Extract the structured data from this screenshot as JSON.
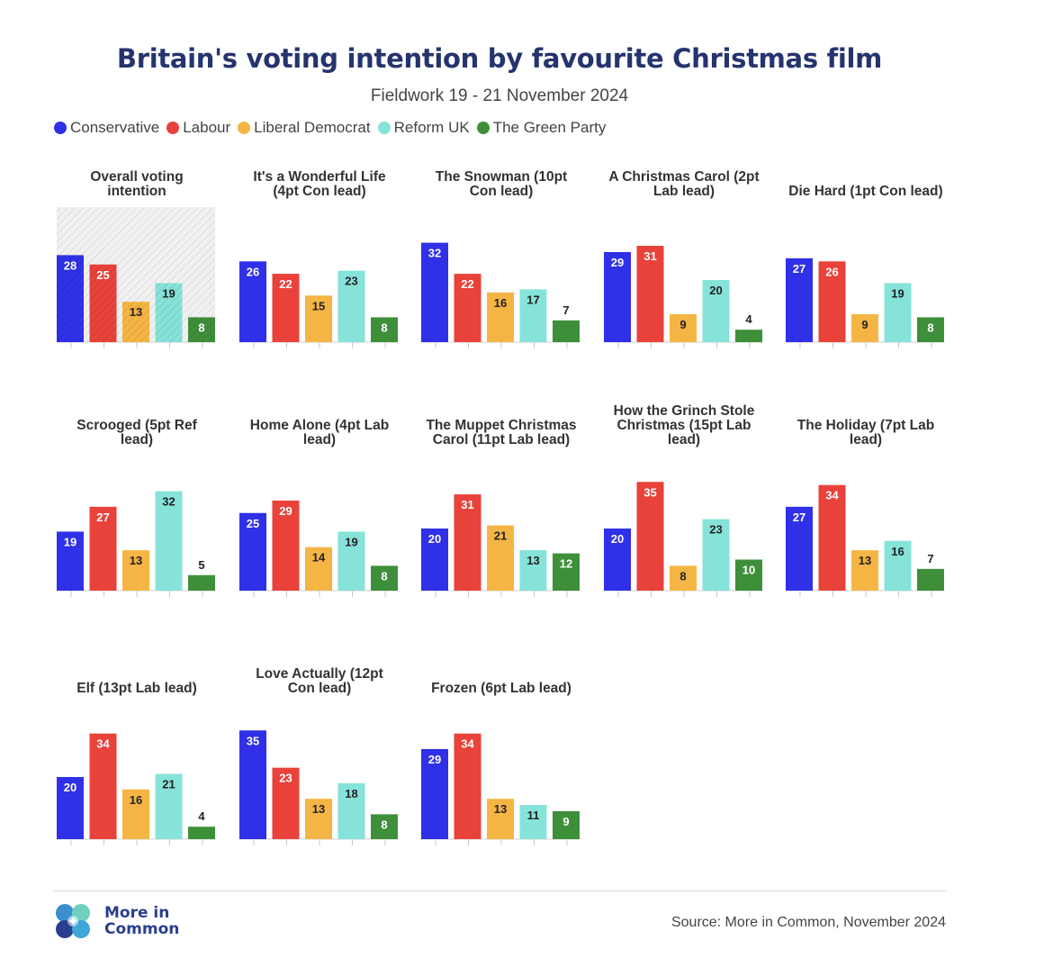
{
  "title": "Britain's voting intention by favourite Christmas film",
  "subtitle": "Fieldwork 19 - 21 November 2024",
  "legend": [
    {
      "name": "Conservative",
      "color": "#3030e8"
    },
    {
      "name": "Labour",
      "color": "#e8423b"
    },
    {
      "name": "Liberal Democrat",
      "color": "#f5b544"
    },
    {
      "name": "Reform UK",
      "color": "#86e3d9"
    },
    {
      "name": "The Green Party",
      "color": "#3e8f3a"
    }
  ],
  "chart_data": [
    {
      "type": "bar",
      "title_lines": [
        "Overall voting",
        "intention"
      ],
      "categories": [
        "Conservative",
        "Labour",
        "Liberal Democrat",
        "Reform UK",
        "The Green Party"
      ],
      "values": [
        28,
        25,
        13,
        19,
        8
      ],
      "highlight": true
    },
    {
      "type": "bar",
      "title_lines": [
        "It's a Wonderful Life",
        "(4pt Con lead)"
      ],
      "categories": [
        "Conservative",
        "Labour",
        "Liberal Democrat",
        "Reform UK",
        "The Green Party"
      ],
      "values": [
        26,
        22,
        15,
        23,
        8
      ]
    },
    {
      "type": "bar",
      "title_lines": [
        "The Snowman (10pt",
        "Con lead)"
      ],
      "categories": [
        "Conservative",
        "Labour",
        "Liberal Democrat",
        "Reform UK",
        "The Green Party"
      ],
      "values": [
        32,
        22,
        16,
        17,
        7
      ]
    },
    {
      "type": "bar",
      "title_lines": [
        "A Christmas Carol (2pt",
        "Lab lead)"
      ],
      "categories": [
        "Conservative",
        "Labour",
        "Liberal Democrat",
        "Reform UK",
        "The Green Party"
      ],
      "values": [
        29,
        31,
        9,
        20,
        4
      ]
    },
    {
      "type": "bar",
      "title_lines": [
        "Die Hard (1pt Con lead)"
      ],
      "categories": [
        "Conservative",
        "Labour",
        "Liberal Democrat",
        "Reform UK",
        "The Green Party"
      ],
      "values": [
        27,
        26,
        9,
        19,
        8
      ]
    },
    {
      "type": "bar",
      "title_lines": [
        "Scrooged (5pt Ref",
        "lead)"
      ],
      "categories": [
        "Conservative",
        "Labour",
        "Liberal Democrat",
        "Reform UK",
        "The Green Party"
      ],
      "values": [
        19,
        27,
        13,
        32,
        5
      ]
    },
    {
      "type": "bar",
      "title_lines": [
        "Home Alone (4pt Lab",
        "lead)"
      ],
      "categories": [
        "Conservative",
        "Labour",
        "Liberal Democrat",
        "Reform UK",
        "The Green Party"
      ],
      "values": [
        25,
        29,
        14,
        19,
        8
      ]
    },
    {
      "type": "bar",
      "title_lines": [
        "The Muppet Christmas",
        "Carol (11pt Lab lead)"
      ],
      "categories": [
        "Conservative",
        "Labour",
        "Liberal Democrat",
        "Reform UK",
        "The Green Party"
      ],
      "values": [
        20,
        31,
        21,
        13,
        12
      ]
    },
    {
      "type": "bar",
      "title_lines": [
        "How the Grinch Stole",
        "Christmas (15pt Lab",
        "lead)"
      ],
      "categories": [
        "Conservative",
        "Labour",
        "Liberal Democrat",
        "Reform UK",
        "The Green Party"
      ],
      "values": [
        20,
        35,
        8,
        23,
        10
      ]
    },
    {
      "type": "bar",
      "title_lines": [
        "The Holiday (7pt Lab",
        "lead)"
      ],
      "categories": [
        "Conservative",
        "Labour",
        "Liberal Democrat",
        "Reform UK",
        "The Green Party"
      ],
      "values": [
        27,
        34,
        13,
        16,
        7
      ]
    },
    {
      "type": "bar",
      "title_lines": [
        "Elf (13pt Lab lead)"
      ],
      "categories": [
        "Conservative",
        "Labour",
        "Liberal Democrat",
        "Reform UK",
        "The Green Party"
      ],
      "values": [
        20,
        34,
        16,
        21,
        4
      ]
    },
    {
      "type": "bar",
      "title_lines": [
        "Love Actually (12pt",
        "Con lead)"
      ],
      "categories": [
        "Conservative",
        "Labour",
        "Liberal Democrat",
        "Reform UK",
        "The Green Party"
      ],
      "values": [
        35,
        23,
        13,
        18,
        8
      ]
    },
    {
      "type": "bar",
      "title_lines": [
        "Frozen (6pt Lab lead)"
      ],
      "categories": [
        "Conservative",
        "Labour",
        "Liberal Democrat",
        "Reform UK",
        "The Green Party"
      ],
      "values": [
        29,
        34,
        13,
        11,
        9
      ]
    }
  ],
  "logo": {
    "line1": "More in",
    "line2": "Common"
  },
  "source": "Source: More in Common, November 2024"
}
